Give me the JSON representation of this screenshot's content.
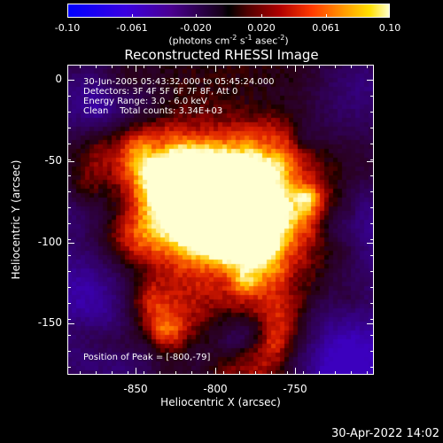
{
  "colorbar": {
    "ticks": [
      "-0.10",
      "-0.061",
      "-0.020",
      "0.020",
      "0.061",
      "0.10"
    ],
    "unit_base": "(photons cm",
    "unit_sup1": "-2",
    "unit_mid1": " s",
    "unit_sup2": "-1",
    "unit_mid2": " asec",
    "unit_sup3": "-2",
    "unit_end": ")"
  },
  "plot": {
    "title": "Reconstructed RHESSI Image",
    "info": [
      "30-Jun-2005 05:43:32.000 to 05:45:24.000",
      "Detectors: 3F 4F 5F 6F 7F 8F, Att 0",
      "Energy Range: 3.0 - 6.0 keV",
      "Clean    Total counts: 3.34E+03"
    ],
    "peak_text": "Position of Peak = [-800,-79]",
    "y_ticks": [
      "0",
      "-50",
      "-100",
      "-150"
    ],
    "x_ticks": [
      "-850",
      "-800",
      "-750"
    ],
    "xlabel": "Heliocentric X (arcsec)",
    "ylabel": "Heliocentric Y (arcsec)",
    "peak_arcsec": [
      -800,
      -79
    ]
  },
  "footer": {
    "date": "30-Apr-2022 14:02"
  }
}
